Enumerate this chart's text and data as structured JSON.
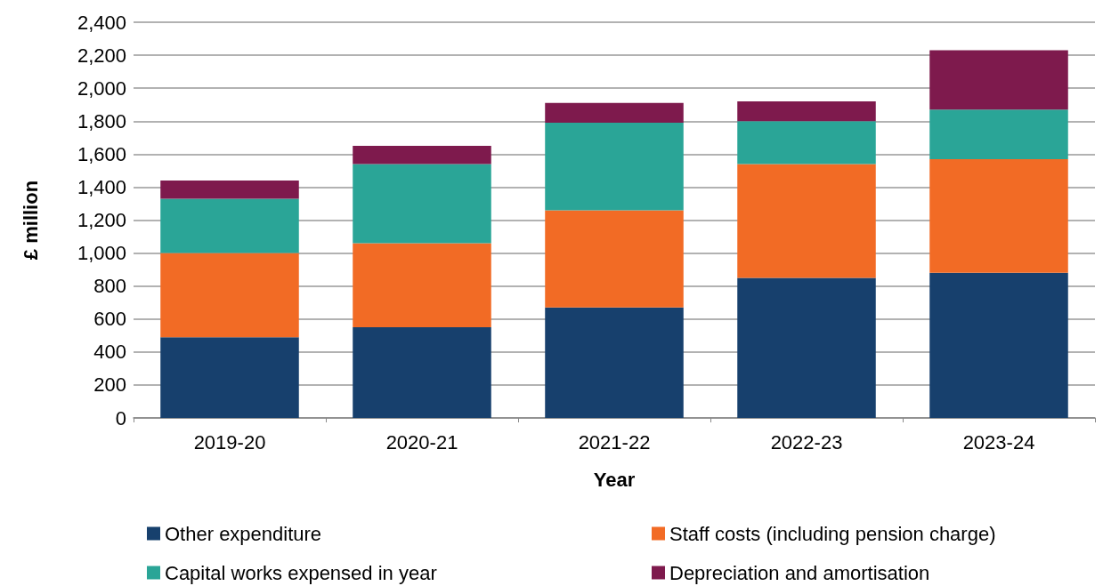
{
  "chart_data": {
    "type": "bar",
    "stacked": true,
    "xlabel": "Year",
    "ylabel": "£ million",
    "categories": [
      "2019-20",
      "2020-21",
      "2021-22",
      "2022-23",
      "2023-24"
    ],
    "series": [
      {
        "name": "Other expenditure",
        "color": "#17406d",
        "values": [
          490,
          550,
          670,
          850,
          880
        ]
      },
      {
        "name": "Staff costs (including pension charge)",
        "color": "#f26b25",
        "values": [
          510,
          510,
          590,
          690,
          690
        ]
      },
      {
        "name": "Capital works expensed in year",
        "color": "#2aa597",
        "values": [
          330,
          480,
          530,
          260,
          300
        ]
      },
      {
        "name": "Depreciation and amortisation",
        "color": "#7e1a4d",
        "values": [
          110,
          110,
          120,
          120,
          360
        ]
      }
    ],
    "ylim": [
      0,
      2400
    ],
    "yticks": [
      0,
      200,
      400,
      600,
      800,
      {
        "value": 1000,
        "label": "1,000"
      },
      {
        "value": 1200,
        "label": "1,200"
      },
      {
        "value": 1400,
        "label": "1,400"
      },
      {
        "value": 1600,
        "label": "1,600"
      },
      {
        "value": 1800,
        "label": "1,800"
      },
      {
        "value": 2000,
        "label": "2,000"
      },
      {
        "value": 2200,
        "label": "2,200"
      },
      {
        "value": 2400,
        "label": "2,400"
      }
    ],
    "grid": "y",
    "legend": "bottom"
  }
}
